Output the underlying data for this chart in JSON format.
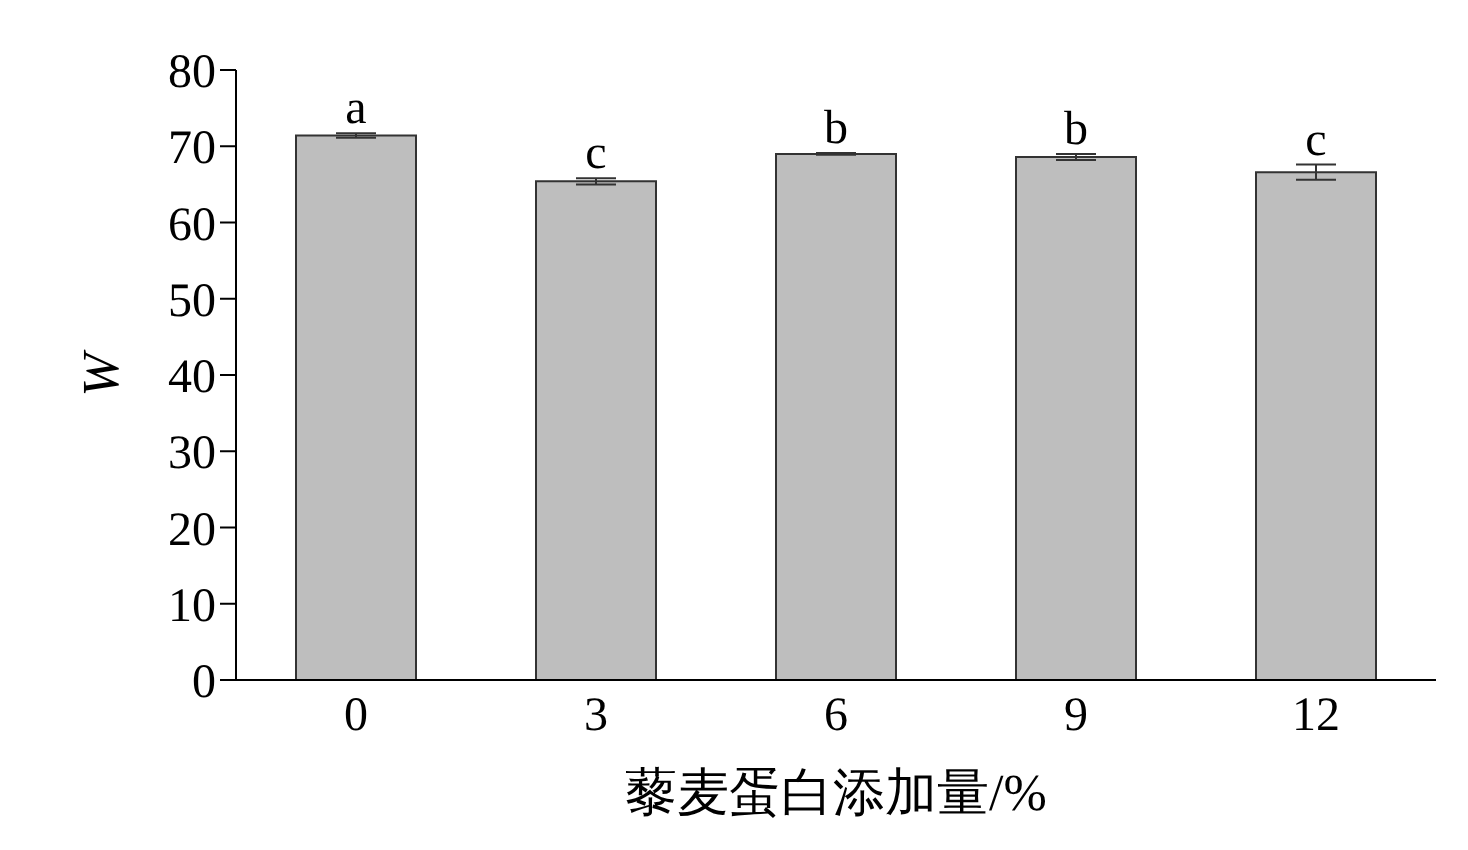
{
  "chart_data": {
    "type": "bar",
    "xlabel": "藜麦蛋白添加量/%",
    "ylabel": "W",
    "categories": [
      "0",
      "3",
      "6",
      "9",
      "12"
    ],
    "values": [
      71.4,
      65.4,
      69.0,
      68.6,
      66.6
    ],
    "errors": [
      0.3,
      0.4,
      0.1,
      0.4,
      1.0
    ],
    "color": "#bebebe",
    "ylim": [
      0,
      80
    ],
    "yticks": [
      0,
      10,
      20,
      30,
      40,
      50,
      60,
      70,
      80
    ],
    "grid": false,
    "legend": false,
    "annotations": [
      {
        "text": "a",
        "x": "0",
        "y": 71.7
      },
      {
        "text": "c",
        "x": "3",
        "y": 65.8
      },
      {
        "text": "b",
        "x": "6",
        "y": 69.1
      },
      {
        "text": "b",
        "x": "9",
        "y": 69.0
      },
      {
        "text": "c",
        "x": "12",
        "y": 67.6
      }
    ]
  }
}
